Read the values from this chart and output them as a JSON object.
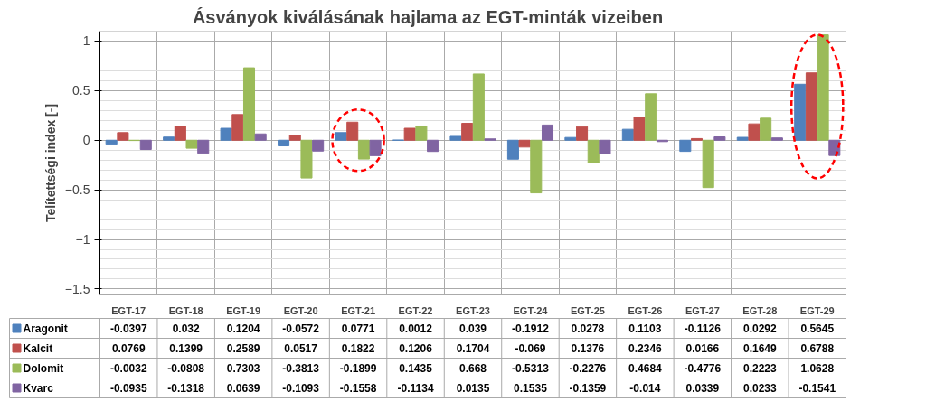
{
  "chart_data": {
    "type": "bar",
    "title": "Ásványok kiválásának hajlama az EGT-minták vizeiben",
    "ylabel": "Telítettségi index [-]",
    "categories": [
      "EGT-17",
      "EGT-18",
      "EGT-19",
      "EGT-20",
      "EGT-21",
      "EGT-22",
      "EGT-23",
      "EGT-24",
      "EGT-25",
      "EGT-26",
      "EGT-27",
      "EGT-28",
      "EGT-29"
    ],
    "series": [
      {
        "name": "Aragonit",
        "color": "#4f81bd",
        "values": [
          -0.0397,
          0.032,
          0.1204,
          -0.0572,
          0.0771,
          0.0012,
          0.039,
          -0.1912,
          0.0278,
          0.1103,
          -0.1126,
          0.0292,
          0.5645
        ]
      },
      {
        "name": "Kalcit",
        "color": "#c0504d",
        "values": [
          0.0769,
          0.1399,
          0.2589,
          0.0517,
          0.1822,
          0.1206,
          0.1704,
          -0.069,
          0.1376,
          0.2346,
          0.0166,
          0.1649,
          0.6788
        ]
      },
      {
        "name": "Dolomit",
        "color": "#9bbb59",
        "values": [
          -0.0032,
          -0.0808,
          0.7303,
          -0.3813,
          -0.1899,
          0.1435,
          0.668,
          -0.5313,
          -0.2276,
          0.4684,
          -0.4776,
          0.2223,
          1.0628
        ]
      },
      {
        "name": "Kvarc",
        "color": "#8064a2",
        "values": [
          -0.0935,
          -0.1318,
          0.0639,
          -0.1093,
          -0.1558,
          -0.1134,
          0.0135,
          0.1535,
          -0.1359,
          -0.014,
          0.0339,
          0.0233,
          -0.1541
        ]
      }
    ],
    "ylim": [
      -1.56,
      1.1
    ],
    "yticks": [
      -1.5,
      -1,
      -0.5,
      0,
      0.5,
      1
    ],
    "grid": "y",
    "legend": "bottom",
    "data_labels": true
  }
}
